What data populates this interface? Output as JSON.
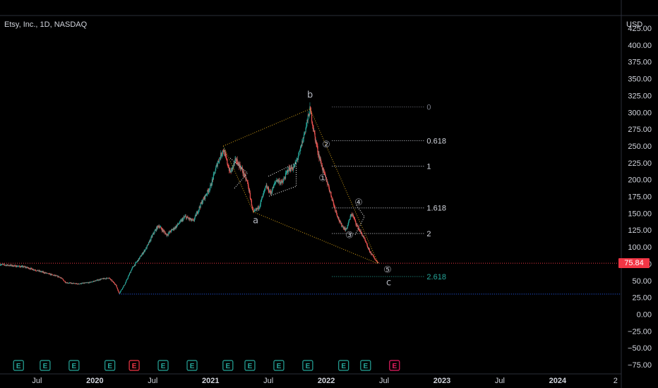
{
  "header": {
    "title": "Etsy, Inc., 1D, NASDAQ",
    "currency": "USD"
  },
  "price": {
    "last": "75.84",
    "color": "#f23645"
  },
  "chart_data": {
    "type": "candlestick",
    "ylim": [
      -75,
      425
    ],
    "y_ticks": [
      "425.00",
      "400.00",
      "375.00",
      "350.00",
      "325.00",
      "300.00",
      "275.00",
      "250.00",
      "225.00",
      "200.00",
      "175.00",
      "150.00",
      "125.00",
      "100.00",
      "75.00",
      "50.00",
      "25.00",
      "0.00",
      "−25.00",
      "−50.00",
      "−75.00"
    ],
    "y_tick_values": [
      425,
      400,
      375,
      350,
      325,
      300,
      275,
      250,
      225,
      200,
      175,
      150,
      125,
      100,
      75,
      50,
      25,
      0,
      -25,
      -50,
      -75
    ],
    "x_labels": [
      {
        "label": "Jul",
        "t": 2019.5
      },
      {
        "label": "2020",
        "t": 2020.0
      },
      {
        "label": "Jul",
        "t": 2020.5
      },
      {
        "label": "2021",
        "t": 2021.0
      },
      {
        "label": "Jul",
        "t": 2021.5
      },
      {
        "label": "2022",
        "t": 2022.0
      },
      {
        "label": "Jul",
        "t": 2022.5
      },
      {
        "label": "2023",
        "t": 2023.0
      },
      {
        "label": "Jul",
        "t": 2023.5
      },
      {
        "label": "2024",
        "t": 2024.0
      },
      {
        "label": "2",
        "t": 2024.5
      }
    ],
    "x_range": [
      2019.18,
      2024.55
    ],
    "price_path": [
      [
        2019.18,
        74
      ],
      [
        2019.3,
        72
      ],
      [
        2019.4,
        70
      ],
      [
        2019.5,
        65
      ],
      [
        2019.6,
        60
      ],
      [
        2019.7,
        55
      ],
      [
        2019.75,
        47
      ],
      [
        2019.85,
        45
      ],
      [
        2019.95,
        47
      ],
      [
        2020.05,
        52
      ],
      [
        2020.12,
        54
      ],
      [
        2020.18,
        44
      ],
      [
        2020.21,
        31
      ],
      [
        2020.26,
        45
      ],
      [
        2020.32,
        68
      ],
      [
        2020.38,
        82
      ],
      [
        2020.45,
        100
      ],
      [
        2020.5,
        118
      ],
      [
        2020.55,
        132
      ],
      [
        2020.62,
        118
      ],
      [
        2020.7,
        130
      ],
      [
        2020.78,
        145
      ],
      [
        2020.85,
        138
      ],
      [
        2020.92,
        165
      ],
      [
        2021.0,
        190
      ],
      [
        2021.06,
        225
      ],
      [
        2021.11,
        245
      ],
      [
        2021.17,
        210
      ],
      [
        2021.22,
        230
      ],
      [
        2021.27,
        215
      ],
      [
        2021.32,
        195
      ],
      [
        2021.37,
        150
      ],
      [
        2021.42,
        160
      ],
      [
        2021.48,
        190
      ],
      [
        2021.52,
        180
      ],
      [
        2021.57,
        200
      ],
      [
        2021.62,
        195
      ],
      [
        2021.67,
        215
      ],
      [
        2021.72,
        218
      ],
      [
        2021.77,
        240
      ],
      [
        2021.82,
        275
      ],
      [
        2021.86,
        305
      ],
      [
        2021.9,
        265
      ],
      [
        2021.93,
        240
      ],
      [
        2021.97,
        215
      ],
      [
        2022.02,
        190
      ],
      [
        2022.07,
        160
      ],
      [
        2022.12,
        135
      ],
      [
        2022.17,
        125
      ],
      [
        2022.22,
        150
      ],
      [
        2022.27,
        130
      ],
      [
        2022.32,
        115
      ],
      [
        2022.37,
        95
      ],
      [
        2022.42,
        82
      ],
      [
        2022.45,
        76
      ]
    ],
    "dotted_levels": [
      {
        "value": 75.84,
        "color": "#f23645",
        "from": 2019.18
      },
      {
        "value": 30,
        "color": "#2962ff",
        "from": 2020.21
      }
    ],
    "fib_levels": [
      {
        "label": "0",
        "value": 308,
        "color": "#787b86"
      },
      {
        "label": "0.618",
        "value": 258,
        "color": "#d1d4dc"
      },
      {
        "label": "1",
        "value": 220,
        "color": "#d1d4dc"
      },
      {
        "label": "1.618",
        "value": 158,
        "color": "#d1d4dc"
      },
      {
        "label": "2",
        "value": 120,
        "color": "#d1d4dc"
      },
      {
        "label": "2.618",
        "value": 56,
        "color": "#26a69a"
      }
    ],
    "fib_x": [
      2022.05,
      2022.85
    ],
    "wave_labels": [
      {
        "text": "b",
        "t": 2021.86,
        "v": 322
      },
      {
        "text": "a",
        "t": 2021.39,
        "v": 135
      },
      {
        "text": "c",
        "t": 2022.54,
        "v": 43
      },
      {
        "text": "①",
        "t": 2021.97,
        "v": 198
      },
      {
        "text": "②",
        "t": 2022.0,
        "v": 248
      },
      {
        "text": "③",
        "t": 2022.2,
        "v": 113
      },
      {
        "text": "④",
        "t": 2022.28,
        "v": 162
      },
      {
        "text": "⑤",
        "t": 2022.53,
        "v": 62
      }
    ],
    "pattern_lines": [
      {
        "color": "#d4a017",
        "points": [
          [
            2021.11,
            250
          ],
          [
            2021.86,
            305
          ]
        ]
      },
      {
        "color": "#d4a017",
        "points": [
          [
            2021.37,
            152
          ],
          [
            2022.45,
            75
          ]
        ]
      },
      {
        "color": "#d4a017",
        "points": [
          [
            2021.11,
            250
          ],
          [
            2021.37,
            152
          ]
        ]
      },
      {
        "color": "#d4a017",
        "points": [
          [
            2021.86,
            305
          ],
          [
            2022.45,
            75
          ]
        ]
      },
      {
        "color": "#ffffff",
        "points": [
          [
            2021.17,
            232
          ],
          [
            2021.32,
            210
          ],
          [
            2021.2,
            186
          ]
        ]
      },
      {
        "color": "#ffffff",
        "points": [
          [
            2021.5,
            205
          ],
          [
            2021.74,
            225
          ],
          [
            2021.74,
            190
          ],
          [
            2021.5,
            175
          ]
        ]
      },
      {
        "color": "#ffffff",
        "points": [
          [
            2022.26,
            162
          ],
          [
            2022.33,
            145
          ],
          [
            2022.25,
            118
          ]
        ]
      }
    ],
    "earnings": [
      {
        "t": 2019.34,
        "color": "#26a69a"
      },
      {
        "t": 2019.57,
        "color": "#26a69a"
      },
      {
        "t": 2019.82,
        "color": "#26a69a"
      },
      {
        "t": 2020.13,
        "color": "#26a69a"
      },
      {
        "t": 2020.34,
        "color": "#f23645"
      },
      {
        "t": 2020.59,
        "color": "#26a69a"
      },
      {
        "t": 2020.84,
        "color": "#26a69a"
      },
      {
        "t": 2021.15,
        "color": "#26a69a"
      },
      {
        "t": 2021.34,
        "color": "#26a69a"
      },
      {
        "t": 2021.59,
        "color": "#26a69a"
      },
      {
        "t": 2021.84,
        "color": "#26a69a"
      },
      {
        "t": 2022.15,
        "color": "#26a69a"
      },
      {
        "t": 2022.34,
        "color": "#26a69a"
      },
      {
        "t": 2022.59,
        "color": "#e91e63"
      }
    ],
    "earnings_label": "E"
  }
}
